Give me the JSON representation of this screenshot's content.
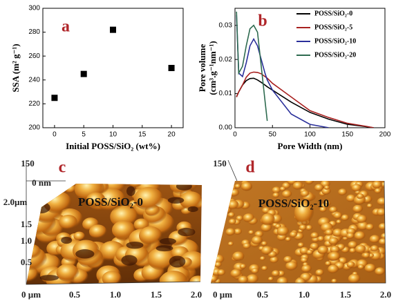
{
  "chart_data": [
    {
      "type": "scatter",
      "panel": "a",
      "x": [
        0,
        5,
        10,
        20
      ],
      "values": [
        225,
        245,
        282,
        250
      ],
      "color": "#000000",
      "xlim": [
        -2,
        22
      ],
      "xticks": [
        0,
        5,
        10,
        15,
        20
      ],
      "ylim": [
        200,
        300
      ],
      "yticks": [
        200,
        220,
        240,
        260,
        280,
        300
      ],
      "xlabel": "Initial POSS/SiO₂ (wt%)",
      "ylabel": [
        "SSA (m² g⁻¹)"
      ]
    },
    {
      "type": "line",
      "panel": "b",
      "x": [
        2,
        5,
        10,
        15,
        20,
        25,
        30,
        35,
        40,
        43,
        50,
        75,
        100,
        125,
        150,
        175,
        185
      ],
      "series": [
        {
          "name": "POSS/SiO₂-0",
          "color": "#000000",
          "values": [
            0.009,
            0.0105,
            0.0125,
            0.0138,
            0.0144,
            0.0145,
            0.014,
            0.0133,
            0.0125,
            0.012,
            0.011,
            0.0075,
            0.0045,
            0.0025,
            0.001,
            0.0003,
            0
          ]
        },
        {
          "name": "POSS/SiO₂-5",
          "color": "#a8201f",
          "values": [
            0.009,
            0.0105,
            0.0125,
            0.0148,
            0.016,
            0.0163,
            0.0162,
            0.0158,
            0.015,
            0.0145,
            0.013,
            0.009,
            0.005,
            0.003,
            0.0013,
            0.0004,
            0
          ]
        },
        {
          "name": "POSS/SiO₂-10",
          "color": "#2a2f9a",
          "values": [
            0.033,
            0.016,
            0.015,
            0.019,
            0.024,
            0.026,
            0.024,
            0.02,
            0.016,
            0.014,
            0.011,
            0.004,
            0.001,
            0,
            null,
            null,
            null
          ]
        },
        {
          "name": "POSS/SiO₂-20",
          "color": "#2d6a4f",
          "values": [
            0.034,
            0.016,
            0.018,
            0.024,
            0.029,
            0.03,
            0.028,
            0.018,
            0.008,
            0.002,
            null,
            null,
            null,
            null,
            null,
            null,
            null
          ]
        }
      ],
      "xlim": [
        0,
        200
      ],
      "xticks": [
        0,
        50,
        100,
        150,
        200
      ],
      "ylim": [
        0,
        0.035
      ],
      "yticks": [
        {
          "value": 0,
          "label": "0.00"
        },
        0.01,
        0.02,
        0.03
      ],
      "xlabel": "Pore Width (nm)",
      "ylabel": [
        "Pore volume",
        "(cm³.g⁻¹nm⁻¹)"
      ],
      "legend": "upper right"
    }
  ],
  "images": [
    {
      "panel": "c",
      "sample": "POSS/SiO₂-0",
      "z_labels": [
        "150",
        "0 nm"
      ],
      "y_labels": [
        "2.0µm",
        "1.5",
        "1.0",
        "0.5"
      ],
      "x_labels": [
        "0 µm",
        "0.5",
        "1.0",
        "1.5",
        "2.0"
      ]
    },
    {
      "panel": "d",
      "sample": "POSS/SiO₂-10",
      "z_labels": [
        "150"
      ],
      "x_labels": [
        "0 µm",
        "0.5",
        "1.0",
        "1.5",
        "2.0"
      ]
    }
  ]
}
